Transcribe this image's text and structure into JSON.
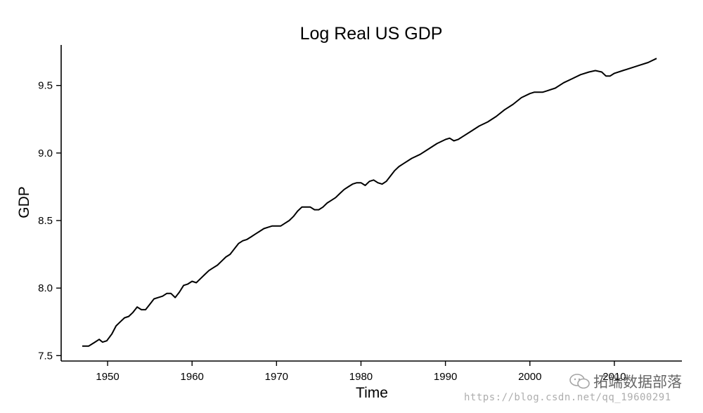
{
  "chart_data": {
    "type": "line",
    "title": "Log Real US GDP",
    "xlabel": "Time",
    "ylabel": "GDP",
    "xlim": [
      1944.5,
      2018.0
    ],
    "ylim": [
      7.46,
      9.8
    ],
    "xticks": [
      1950,
      1960,
      1970,
      1980,
      1990,
      2000,
      2010
    ],
    "yticks": [
      7.5,
      8.0,
      8.5,
      9.0,
      9.5
    ],
    "ytick_labels": [
      "7.5",
      "8.0",
      "8.5",
      "9.0",
      "9.5"
    ],
    "grid": false,
    "series": [
      {
        "name": "GDP",
        "x": [
          1947.0,
          1947.75,
          1948.5,
          1949.0,
          1949.4,
          1949.9,
          1950.5,
          1951.0,
          1951.5,
          1952.0,
          1952.5,
          1953.0,
          1953.5,
          1954.0,
          1954.5,
          1955.0,
          1955.5,
          1956.0,
          1956.5,
          1957.0,
          1957.5,
          1958.0,
          1958.5,
          1959.0,
          1959.5,
          1960.0,
          1960.5,
          1961.0,
          1961.5,
          1962.0,
          1962.5,
          1963.0,
          1963.5,
          1964.0,
          1964.5,
          1965.0,
          1965.5,
          1966.0,
          1966.5,
          1967.0,
          1967.5,
          1968.0,
          1968.5,
          1969.0,
          1969.5,
          1970.0,
          1970.5,
          1971.0,
          1971.5,
          1972.0,
          1972.5,
          1973.0,
          1973.5,
          1974.0,
          1974.5,
          1975.0,
          1975.5,
          1976.0,
          1976.5,
          1977.0,
          1977.5,
          1978.0,
          1978.5,
          1979.0,
          1979.5,
          1980.0,
          1980.5,
          1981.0,
          1981.5,
          1982.0,
          1982.5,
          1983.0,
          1983.5,
          1984.0,
          1984.5,
          1985.0,
          1986.0,
          1987.0,
          1988.0,
          1989.0,
          1990.0,
          1990.5,
          1991.0,
          1991.5,
          1992.0,
          1993.0,
          1994.0,
          1995.0,
          1996.0,
          1997.0,
          1998.0,
          1999.0,
          2000.0,
          2000.5,
          2001.0,
          2001.5,
          2002.0,
          2003.0,
          2004.0,
          2005.0,
          2006.0,
          2007.0,
          2007.75,
          2008.5,
          2009.0,
          2009.5,
          2010.0,
          2011.0,
          2012.0,
          2013.0,
          2014.0,
          2015.0
        ],
        "values": [
          7.57,
          7.57,
          7.6,
          7.62,
          7.6,
          7.61,
          7.66,
          7.72,
          7.75,
          7.78,
          7.79,
          7.82,
          7.86,
          7.84,
          7.84,
          7.88,
          7.92,
          7.93,
          7.94,
          7.96,
          7.96,
          7.93,
          7.97,
          8.02,
          8.03,
          8.05,
          8.04,
          8.07,
          8.1,
          8.13,
          8.15,
          8.17,
          8.2,
          8.23,
          8.25,
          8.29,
          8.33,
          8.35,
          8.36,
          8.38,
          8.4,
          8.42,
          8.44,
          8.45,
          8.46,
          8.46,
          8.46,
          8.48,
          8.5,
          8.53,
          8.57,
          8.6,
          8.6,
          8.6,
          8.58,
          8.58,
          8.6,
          8.63,
          8.65,
          8.67,
          8.7,
          8.73,
          8.75,
          8.77,
          8.78,
          8.78,
          8.76,
          8.79,
          8.8,
          8.78,
          8.77,
          8.79,
          8.83,
          8.87,
          8.9,
          8.92,
          8.96,
          8.99,
          9.03,
          9.07,
          9.1,
          9.11,
          9.09,
          9.1,
          9.12,
          9.16,
          9.2,
          9.23,
          9.27,
          9.32,
          9.36,
          9.41,
          9.44,
          9.45,
          9.45,
          9.45,
          9.46,
          9.48,
          9.52,
          9.55,
          9.58,
          9.6,
          9.61,
          9.6,
          9.57,
          9.57,
          9.59,
          9.61,
          9.63,
          9.65,
          9.67,
          9.7
        ]
      }
    ]
  },
  "watermark": {
    "brand": "拓端数据部落",
    "url": "https://blog.csdn.net/qq_19600291"
  }
}
